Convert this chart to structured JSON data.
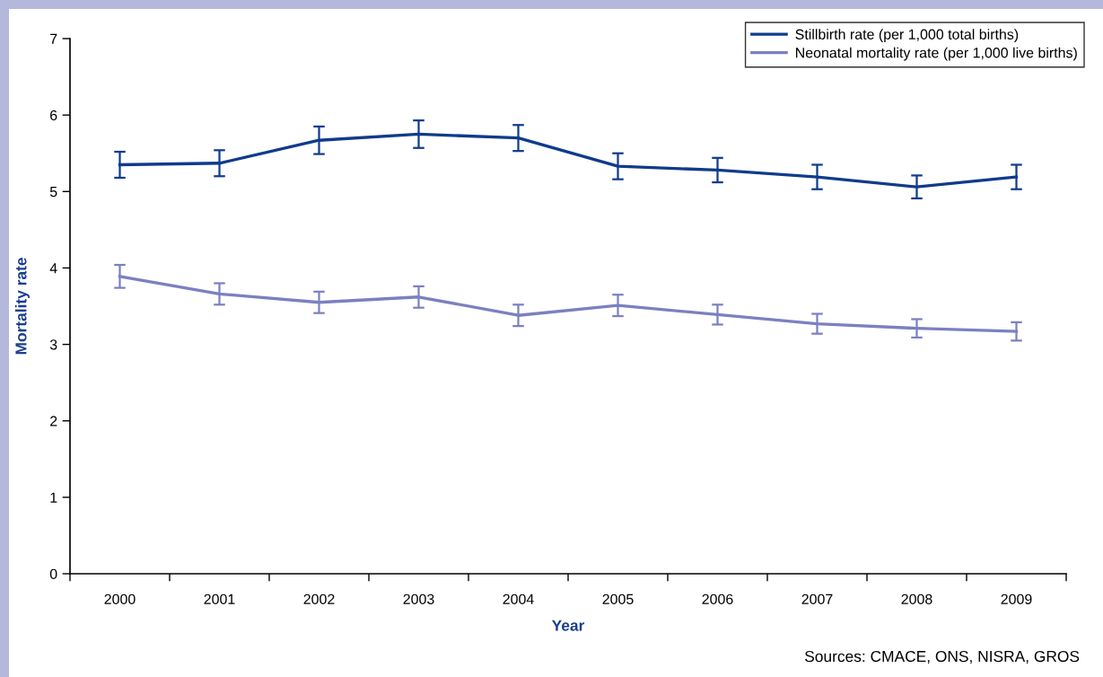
{
  "chart_data": {
    "type": "line",
    "xlabel": "Year",
    "ylabel": "Mortality rate",
    "annotations": [
      "Sources: CMACE, ONS, NISRA, GROS"
    ],
    "categories": [
      "2000",
      "2001",
      "2002",
      "2003",
      "2004",
      "2005",
      "2006",
      "2007",
      "2008",
      "2009"
    ],
    "series": [
      {
        "name": "Stillbirth rate (per 1,000 total births)",
        "color": "#0f3b8c",
        "values": [
          5.35,
          5.37,
          5.67,
          5.75,
          5.7,
          5.33,
          5.28,
          5.19,
          5.06,
          5.19
        ],
        "errors": [
          0.17,
          0.17,
          0.18,
          0.18,
          0.17,
          0.17,
          0.16,
          0.16,
          0.15,
          0.16
        ]
      },
      {
        "name": "Neonatal mortality rate (per 1,000 live births)",
        "color": "#7b80c0",
        "values": [
          3.89,
          3.66,
          3.55,
          3.62,
          3.38,
          3.51,
          3.39,
          3.27,
          3.21,
          3.17
        ],
        "errors": [
          0.15,
          0.14,
          0.14,
          0.14,
          0.14,
          0.14,
          0.13,
          0.13,
          0.12,
          0.12
        ]
      }
    ],
    "ylim": [
      0,
      7
    ],
    "yticks": [
      0,
      1,
      2,
      3,
      4,
      5,
      6,
      7
    ],
    "legend": "top right",
    "marker": "none",
    "line_style": "solid"
  }
}
